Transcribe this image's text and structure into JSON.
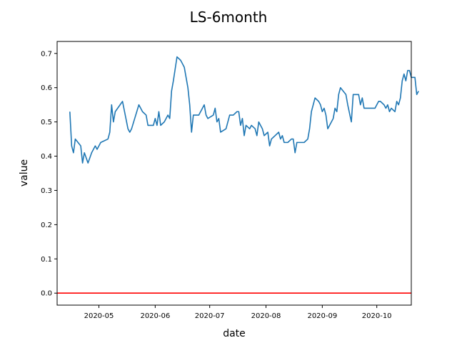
{
  "chart_data": {
    "type": "line",
    "title": "LS-6month",
    "xlabel": "date",
    "ylabel": "value",
    "xlim": [
      "2020-04-08",
      "2020-10-20"
    ],
    "ylim": [
      -0.035,
      0.735
    ],
    "x_ticks": [
      "2020-05",
      "2020-06",
      "2020-07",
      "2020-08",
      "2020-09",
      "2020-10"
    ],
    "y_ticks": [
      "0.0",
      "0.1",
      "0.2",
      "0.3",
      "0.4",
      "0.5",
      "0.6",
      "0.7"
    ],
    "grid": false,
    "legend": "none",
    "reference_line": {
      "y": 0.0,
      "color": "#ff0000"
    },
    "series": [
      {
        "color": "#1f77b4",
        "points": [
          [
            "2020-04-15",
            0.53
          ],
          [
            "2020-04-16",
            0.43
          ],
          [
            "2020-04-17",
            0.41
          ],
          [
            "2020-04-18",
            0.45
          ],
          [
            "2020-04-21",
            0.43
          ],
          [
            "2020-04-22",
            0.38
          ],
          [
            "2020-04-23",
            0.41
          ],
          [
            "2020-04-25",
            0.38
          ],
          [
            "2020-04-27",
            0.41
          ],
          [
            "2020-04-29",
            0.43
          ],
          [
            "2020-04-30",
            0.42
          ],
          [
            "2020-05-02",
            0.44
          ],
          [
            "2020-05-06",
            0.45
          ],
          [
            "2020-05-07",
            0.47
          ],
          [
            "2020-05-08",
            0.55
          ],
          [
            "2020-05-09",
            0.5
          ],
          [
            "2020-05-10",
            0.53
          ],
          [
            "2020-05-14",
            0.56
          ],
          [
            "2020-05-17",
            0.48
          ],
          [
            "2020-05-18",
            0.47
          ],
          [
            "2020-05-19",
            0.48
          ],
          [
            "2020-05-23",
            0.55
          ],
          [
            "2020-05-25",
            0.53
          ],
          [
            "2020-05-27",
            0.52
          ],
          [
            "2020-05-28",
            0.49
          ],
          [
            "2020-05-31",
            0.49
          ],
          [
            "2020-06-01",
            0.51
          ],
          [
            "2020-06-02",
            0.49
          ],
          [
            "2020-06-03",
            0.53
          ],
          [
            "2020-06-04",
            0.49
          ],
          [
            "2020-06-06",
            0.5
          ],
          [
            "2020-06-08",
            0.52
          ],
          [
            "2020-06-09",
            0.51
          ],
          [
            "2020-06-10",
            0.59
          ],
          [
            "2020-06-11",
            0.62
          ],
          [
            "2020-06-13",
            0.69
          ],
          [
            "2020-06-15",
            0.68
          ],
          [
            "2020-06-17",
            0.66
          ],
          [
            "2020-06-19",
            0.6
          ],
          [
            "2020-06-20",
            0.55
          ],
          [
            "2020-06-21",
            0.47
          ],
          [
            "2020-06-22",
            0.52
          ],
          [
            "2020-06-24",
            0.52
          ],
          [
            "2020-06-25",
            0.52
          ],
          [
            "2020-06-27",
            0.54
          ],
          [
            "2020-06-28",
            0.55
          ],
          [
            "2020-06-29",
            0.52
          ],
          [
            "2020-06-30",
            0.51
          ],
          [
            "2020-07-03",
            0.52
          ],
          [
            "2020-07-04",
            0.54
          ],
          [
            "2020-07-05",
            0.5
          ],
          [
            "2020-07-06",
            0.51
          ],
          [
            "2020-07-07",
            0.47
          ],
          [
            "2020-07-10",
            0.48
          ],
          [
            "2020-07-12",
            0.52
          ],
          [
            "2020-07-14",
            0.52
          ],
          [
            "2020-07-16",
            0.53
          ],
          [
            "2020-07-17",
            0.53
          ],
          [
            "2020-07-18",
            0.49
          ],
          [
            "2020-07-19",
            0.51
          ],
          [
            "2020-07-20",
            0.46
          ],
          [
            "2020-07-21",
            0.49
          ],
          [
            "2020-07-23",
            0.48
          ],
          [
            "2020-07-24",
            0.49
          ],
          [
            "2020-07-26",
            0.48
          ],
          [
            "2020-07-27",
            0.46
          ],
          [
            "2020-07-28",
            0.5
          ],
          [
            "2020-07-30",
            0.48
          ],
          [
            "2020-07-31",
            0.46
          ],
          [
            "2020-08-02",
            0.47
          ],
          [
            "2020-08-03",
            0.43
          ],
          [
            "2020-08-04",
            0.45
          ],
          [
            "2020-08-06",
            0.46
          ],
          [
            "2020-08-08",
            0.47
          ],
          [
            "2020-08-09",
            0.45
          ],
          [
            "2020-08-10",
            0.46
          ],
          [
            "2020-08-11",
            0.44
          ],
          [
            "2020-08-13",
            0.44
          ],
          [
            "2020-08-15",
            0.45
          ],
          [
            "2020-08-16",
            0.45
          ],
          [
            "2020-08-17",
            0.41
          ],
          [
            "2020-08-18",
            0.44
          ],
          [
            "2020-08-20",
            0.44
          ],
          [
            "2020-08-22",
            0.44
          ],
          [
            "2020-08-24",
            0.45
          ],
          [
            "2020-08-25",
            0.48
          ],
          [
            "2020-08-26",
            0.53
          ],
          [
            "2020-08-28",
            0.57
          ],
          [
            "2020-08-30",
            0.56
          ],
          [
            "2020-08-31",
            0.55
          ],
          [
            "2020-09-01",
            0.53
          ],
          [
            "2020-09-02",
            0.54
          ],
          [
            "2020-09-03",
            0.52
          ],
          [
            "2020-09-04",
            0.48
          ],
          [
            "2020-09-07",
            0.51
          ],
          [
            "2020-09-08",
            0.54
          ],
          [
            "2020-09-09",
            0.53
          ],
          [
            "2020-09-10",
            0.58
          ],
          [
            "2020-09-11",
            0.6
          ],
          [
            "2020-09-14",
            0.58
          ],
          [
            "2020-09-15",
            0.55
          ],
          [
            "2020-09-17",
            0.5
          ],
          [
            "2020-09-18",
            0.58
          ],
          [
            "2020-09-21",
            0.58
          ],
          [
            "2020-09-22",
            0.55
          ],
          [
            "2020-09-23",
            0.57
          ],
          [
            "2020-09-24",
            0.54
          ],
          [
            "2020-09-29",
            0.54
          ],
          [
            "2020-09-30",
            0.54
          ],
          [
            "2020-10-01",
            0.55
          ],
          [
            "2020-10-02",
            0.56
          ],
          [
            "2020-10-03",
            0.56
          ],
          [
            "2020-10-05",
            0.55
          ],
          [
            "2020-10-06",
            0.54
          ],
          [
            "2020-10-07",
            0.55
          ],
          [
            "2020-10-08",
            0.53
          ],
          [
            "2020-10-09",
            0.54
          ],
          [
            "2020-10-11",
            0.53
          ],
          [
            "2020-10-12",
            0.56
          ],
          [
            "2020-10-13",
            0.55
          ],
          [
            "2020-10-14",
            0.57
          ],
          [
            "2020-10-15",
            0.62
          ],
          [
            "2020-10-16",
            0.64
          ],
          [
            "2020-10-17",
            0.62
          ],
          [
            "2020-10-18",
            0.65
          ],
          [
            "2020-10-19",
            0.65
          ],
          [
            "2020-10-20",
            0.63
          ],
          [
            "2020-10-21",
            0.63
          ],
          [
            "2020-10-22",
            0.63
          ],
          [
            "2020-10-23",
            0.58
          ],
          [
            "2020-10-24",
            0.59
          ]
        ]
      }
    ]
  }
}
